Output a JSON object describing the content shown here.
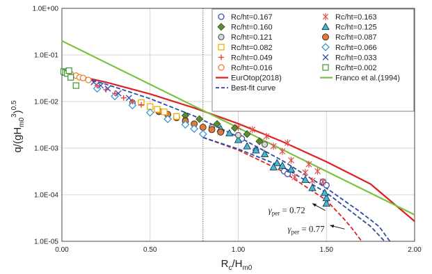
{
  "chart_data": {
    "type": "scatter",
    "xlabel": "R",
    "xlabel_sub": "c",
    "xlabel_tail": "/H",
    "xlabel_sub2": "m0",
    "ylabel": "q/(gH",
    "ylabel_sub": "m0",
    "ylabel_sup": "3",
    "ylabel_tail": ")",
    "ylabel_sup2": "0.5",
    "x_ticks": [
      "0.00",
      "0.50",
      "1.00",
      "1.50",
      "2.00"
    ],
    "y_ticks": [
      "1.0E-05",
      "1.0E-04",
      "1.0E-03",
      "1.0E-02",
      "1.0E-01",
      "1.0E+00"
    ],
    "xlim": [
      0,
      2.0
    ],
    "ylim_log10": [
      -5,
      0
    ],
    "y_scale": "log",
    "grid": "major gridlines on both axes",
    "reference_line_x": 0.8,
    "legend_position": "top-right",
    "series": [
      {
        "name": "Rc/ht=0.167",
        "marker": "circle-open",
        "color": "#3b4fb3",
        "points": [
          [
            1.48,
            0.00019
          ],
          [
            1.5,
            0.00016
          ],
          [
            1.26,
            0.00032
          ],
          [
            1.28,
            0.00028
          ],
          [
            1.1,
            0.0009
          ],
          [
            1.02,
            0.0016
          ]
        ]
      },
      {
        "name": "Rc/ht=0.163",
        "marker": "asterisk",
        "color": "#e0504a",
        "points": [
          [
            1.45,
            0.00032
          ],
          [
            1.4,
            0.00045
          ],
          [
            1.38,
            0.0003
          ],
          [
            1.3,
            0.00055
          ],
          [
            1.25,
            0.00085
          ],
          [
            1.2,
            0.0011
          ],
          [
            1.32,
            0.00024
          ],
          [
            1.48,
            0.00019
          ],
          [
            1.42,
            0.0002
          ],
          [
            1.16,
            0.0018
          ],
          [
            1.28,
            0.0013
          ],
          [
            1.08,
            0.0025
          ],
          [
            1.0,
            0.0028
          ]
        ]
      },
      {
        "name": "Rc/ht=0.160",
        "marker": "diamond",
        "color": "#5f8a34",
        "points": [
          [
            1.12,
            0.0014
          ],
          [
            1.05,
            0.002
          ],
          [
            0.98,
            0.0027
          ],
          [
            0.88,
            0.0033
          ],
          [
            0.78,
            0.0042
          ],
          [
            0.7,
            0.005
          ]
        ]
      },
      {
        "name": "Rc/ht=0.125",
        "marker": "triangle",
        "color": "#45b8d6",
        "points": [
          [
            1.5,
            6.5e-05
          ],
          [
            1.5,
            8.5e-05
          ],
          [
            1.49,
            0.00011
          ],
          [
            1.42,
            0.00014
          ],
          [
            1.38,
            0.00021
          ],
          [
            1.3,
            0.00035
          ],
          [
            1.22,
            0.00048
          ],
          [
            1.2,
            0.00039
          ],
          [
            1.15,
            0.00075
          ],
          [
            1.1,
            0.0009
          ],
          [
            1.05,
            0.0011
          ],
          [
            1.0,
            0.0015
          ],
          [
            0.95,
            0.0021
          ],
          [
            0.9,
            0.0026
          ],
          [
            1.25,
            0.00042
          ]
        ]
      },
      {
        "name": "Rc/ht=0.121",
        "marker": "circle-gray",
        "color": "#7a7a7a",
        "points": [
          [
            1.15,
            0.0012
          ],
          [
            1.0,
            0.0019
          ],
          [
            0.85,
            0.0028
          ],
          [
            0.7,
            0.004
          ],
          [
            0.55,
            0.006
          ],
          [
            0.4,
            0.0095
          ]
        ]
      },
      {
        "name": "Rc/ht=0.087",
        "marker": "circle-filled",
        "color": "#e07a3a",
        "points": [
          [
            0.8,
            0.0028
          ],
          [
            0.75,
            0.0033
          ],
          [
            0.7,
            0.0038
          ],
          [
            0.65,
            0.0045
          ],
          [
            0.6,
            0.0053
          ],
          [
            0.55,
            0.0062
          ],
          [
            0.85,
            0.0025
          ],
          [
            0.9,
            0.0022
          ]
        ]
      },
      {
        "name": "Rc/ht=0.082",
        "marker": "square-open",
        "color": "#f0b000",
        "points": [
          [
            0.58,
            0.006
          ],
          [
            0.54,
            0.0068
          ],
          [
            0.5,
            0.0078
          ],
          [
            0.45,
            0.0095
          ],
          [
            0.65,
            0.0048
          ]
        ]
      },
      {
        "name": "Rc/ht=0.066",
        "marker": "diamond-open",
        "color": "#3d95d8",
        "points": [
          [
            0.8,
            0.002
          ],
          [
            0.75,
            0.0026
          ],
          [
            0.7,
            0.0032
          ],
          [
            0.6,
            0.0042
          ],
          [
            0.5,
            0.0058
          ],
          [
            0.4,
            0.0083
          ],
          [
            0.3,
            0.013
          ],
          [
            0.2,
            0.019
          ]
        ]
      },
      {
        "name": "Rc/ht=0.049",
        "marker": "plus",
        "color": "#e84040",
        "points": [
          [
            0.2,
            0.022
          ],
          [
            0.25,
            0.018
          ],
          [
            0.3,
            0.015
          ],
          [
            0.35,
            0.012
          ],
          [
            0.4,
            0.01
          ],
          [
            0.45,
            0.0085
          ]
        ]
      },
      {
        "name": "Rc/ht=0.033",
        "marker": "x",
        "color": "#3b4fb3",
        "points": [
          [
            0.18,
            0.026
          ],
          [
            0.22,
            0.022
          ],
          [
            0.26,
            0.019
          ],
          [
            0.32,
            0.015
          ],
          [
            0.38,
            0.012
          ]
        ]
      },
      {
        "name": "Rc/ht=0.016",
        "marker": "circle-open",
        "color": "#f07e28",
        "points": [
          [
            0.05,
            0.039
          ],
          [
            0.08,
            0.036
          ],
          [
            0.1,
            0.033
          ],
          [
            0.12,
            0.032
          ],
          [
            0.15,
            0.029
          ]
        ]
      },
      {
        "name": "Rc/ht=0.002",
        "marker": "square-open",
        "color": "#4e9a3a",
        "points": [
          [
            0.01,
            0.044
          ],
          [
            0.02,
            0.042
          ],
          [
            0.03,
            0.04
          ],
          [
            0.05,
            0.033
          ],
          [
            0.08,
            0.022
          ],
          [
            0.04,
            0.046
          ]
        ]
      }
    ],
    "lines": [
      {
        "name": "EurOtop(2018)",
        "color": "#e02020",
        "style": "solid",
        "points": [
          [
            0,
            0.042
          ],
          [
            0.25,
            0.026
          ],
          [
            0.5,
            0.0145
          ],
          [
            0.75,
            0.0073
          ],
          [
            1.0,
            0.00335
          ],
          [
            1.25,
            0.00138
          ],
          [
            1.5,
            0.00051
          ],
          [
            1.75,
            0.00017
          ],
          [
            2.0,
            2.7e-05
          ]
        ]
      },
      {
        "name": "Franco et al.(1994)",
        "color": "#7cc242",
        "style": "solid",
        "points": [
          [
            0,
            0.2
          ],
          [
            2.0,
            3.7e-05
          ]
        ]
      },
      {
        "name": "Best-fit curve",
        "color": "#2849a8",
        "style": "dashed",
        "points": [
          [
            0,
            0.042
          ],
          [
            0.25,
            0.0235
          ],
          [
            0.5,
            0.0115
          ],
          [
            0.75,
            0.0049
          ],
          [
            1.0,
            0.00175
          ],
          [
            1.25,
            0.00054
          ],
          [
            1.5,
            0.000138
          ],
          [
            1.68,
            4.6e-05
          ],
          [
            1.75,
            2.9e-05
          ],
          [
            1.8,
            2.05e-05
          ],
          [
            1.86,
            1e-05
          ]
        ]
      },
      {
        "name": "",
        "color": "#e02020",
        "style": "dashed",
        "points": [
          [
            0.8,
            0.0017
          ],
          [
            1.0,
            0.00091
          ],
          [
            1.25,
            0.00032
          ],
          [
            1.5,
            7.6e-05
          ],
          [
            1.6,
            3e-05
          ],
          [
            1.64,
            2e-05
          ],
          [
            1.7,
            1e-05
          ]
        ]
      },
      {
        "name": "",
        "color": "#2849a8",
        "style": "dashed",
        "points": [
          [
            0.8,
            0.0017
          ],
          [
            1.0,
            0.00096
          ],
          [
            1.25,
            0.0004
          ],
          [
            1.5,
            0.00011
          ],
          [
            1.75,
            2.1e-05
          ],
          [
            1.83,
            1e-05
          ]
        ]
      }
    ],
    "annotations": [
      {
        "prefix": "γ",
        "sub": "per",
        "text": " = 0.72",
        "anchor": [
          1.17,
          4e-05
        ],
        "arrow_to": [
          1.42,
          6.5e-05
        ]
      },
      {
        "prefix": "γ",
        "sub": "per",
        "text": " = 0.77",
        "anchor": [
          1.28,
          1.6e-05
        ],
        "arrow_to": [
          1.52,
          2.2e-05
        ]
      }
    ]
  }
}
